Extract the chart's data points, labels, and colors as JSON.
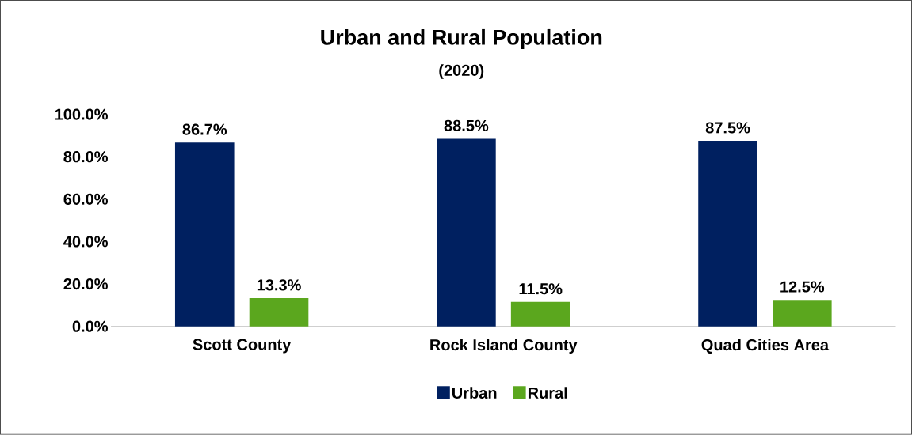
{
  "chart_data": {
    "type": "bar",
    "title": "Urban and Rural Population",
    "subtitle": "(2020)",
    "categories": [
      "Scott County",
      "Rock Island County",
      "Quad Cities Area"
    ],
    "series": [
      {
        "name": "Urban",
        "color": "#002060",
        "values": [
          86.7,
          88.5,
          87.5
        ],
        "value_labels": [
          "86.7%",
          "88.5%",
          "87.5%"
        ]
      },
      {
        "name": "Rural",
        "color": "#5ba71e",
        "values": [
          13.3,
          11.5,
          12.5
        ],
        "value_labels": [
          "13.3%",
          "11.5%",
          "12.5%"
        ]
      }
    ],
    "ylim": [
      0,
      100
    ],
    "yticks": [
      {
        "value": 0,
        "label": "0.0%"
      },
      {
        "value": 20,
        "label": "20.0%"
      },
      {
        "value": 40,
        "label": "40.0%"
      },
      {
        "value": 60,
        "label": "60.0%"
      },
      {
        "value": 80,
        "label": "80.0%"
      },
      {
        "value": 100,
        "label": "100.0%"
      }
    ],
    "grid": false,
    "legend": "bottom"
  }
}
